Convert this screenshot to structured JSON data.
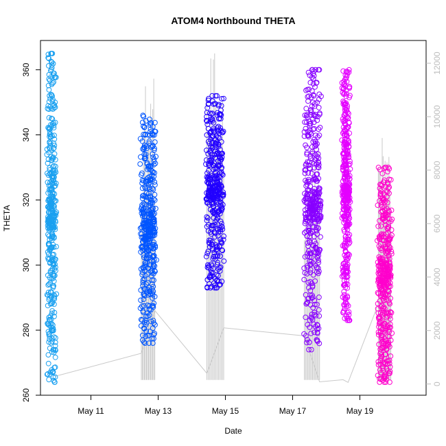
{
  "chart_data": {
    "type": "scatter",
    "title": "ATOM4 Northbound THETA",
    "xlabel": "Date",
    "ylabel": "THETA",
    "x_ticks": [
      "May 11",
      "May 13",
      "May 15",
      "May 17",
      "May 19"
    ],
    "x_tick_days": [
      11,
      13,
      15,
      17,
      19
    ],
    "xlim_days": [
      9.5,
      20.97
    ],
    "ylim": [
      260,
      369
    ],
    "y_ticks": [
      260,
      280,
      300,
      320,
      340,
      360
    ],
    "y2_ticks": [
      0,
      2000,
      4000,
      6000,
      8000,
      10000,
      12000
    ],
    "y2lim": [
      -420,
      12850
    ],
    "grid": false,
    "legend": "none",
    "secondary_series_color": "#c8c8c8",
    "clusters": [
      {
        "color": "#1aa0f0",
        "x_start": 9.72,
        "x_end": 9.94,
        "y_low": 264,
        "y_high": 365
      },
      {
        "color": "#0055ff",
        "x_start": 12.5,
        "x_end": 12.92,
        "y_low": 276,
        "y_high": 346
      },
      {
        "color": "#2200ff",
        "x_start": 14.45,
        "x_end": 14.92,
        "y_low": 293,
        "y_high": 352
      },
      {
        "color": "#8800ff",
        "x_start": 17.37,
        "x_end": 17.82,
        "y_low": 274,
        "y_high": 360
      },
      {
        "color": "#e400ff",
        "x_start": 18.5,
        "x_end": 18.68,
        "y_low": 283,
        "y_high": 360
      },
      {
        "color": "#ff00cc",
        "x_start": 19.55,
        "x_end": 19.92,
        "y_low": 264,
        "y_high": 330
      }
    ],
    "secondary_series": [
      {
        "x": 9.95,
        "y": 300
      },
      {
        "x": 9.98,
        "y": 300
      },
      {
        "x": 12.5,
        "y": 1150
      },
      {
        "x": 12.9,
        "y": 2750
      },
      {
        "x": 14.45,
        "y": 400
      },
      {
        "x": 14.95,
        "y": 2100
      },
      {
        "x": 17.35,
        "y": 1800
      },
      {
        "x": 17.8,
        "y": 80
      },
      {
        "x": 18.5,
        "y": 160
      },
      {
        "x": 18.65,
        "y": 60
      },
      {
        "x": 19.55,
        "y": 3000
      }
    ],
    "secondary_spikes": [
      {
        "x_start": 12.5,
        "x_end": 12.9,
        "y_base": 150,
        "y_peak": 11600
      },
      {
        "x_start": 14.45,
        "x_end": 14.95,
        "y_base": 150,
        "y_peak": 12400
      },
      {
        "x_start": 17.35,
        "x_end": 17.8,
        "y_base": 150,
        "y_peak": 9000
      },
      {
        "x_start": 19.55,
        "x_end": 19.92,
        "y_base": 150,
        "y_peak": 9500
      }
    ]
  }
}
